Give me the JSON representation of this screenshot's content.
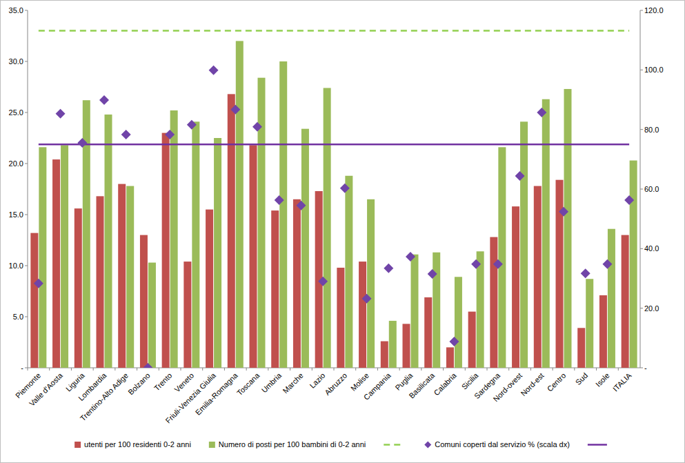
{
  "chart_data": {
    "type": "bar",
    "legend": "bottom",
    "grid": false,
    "categories": [
      "Piemonte",
      "Valle d'Aosta",
      "Liguria",
      "Lombardia",
      "Trentino-Alto Adige",
      "Bolzano",
      "Trento",
      "Veneto",
      "Friuli-Venezia Giulia",
      "Emilia-Romagna",
      "Toscana",
      "Umbria",
      "Marche",
      "Lazio",
      "Abruzzo",
      "Molise",
      "Campania",
      "Puglia",
      "Basilicata",
      "Calabria",
      "Sicilia",
      "Sardegna",
      "Nord-ovest",
      "Nord-est",
      "Centro",
      "Sud",
      "Isole",
      "ITALIA"
    ],
    "ylim": [
      0,
      35
    ],
    "yticks": [
      {
        "value": 0,
        "label": "-"
      },
      {
        "value": 5,
        "label": "5.0"
      },
      {
        "value": 10,
        "label": "10.0"
      },
      {
        "value": 15,
        "label": "15.0"
      },
      {
        "value": 20,
        "label": "20.0"
      },
      {
        "value": 25,
        "label": "25.0"
      },
      {
        "value": 30,
        "label": "30.0"
      },
      {
        "value": 35,
        "label": "35.0"
      }
    ],
    "y2lim": [
      0,
      120
    ],
    "y2ticks": [
      {
        "value": 0,
        "label": "-"
      },
      {
        "value": 20,
        "label": "20.0"
      },
      {
        "value": 40,
        "label": "40.0"
      },
      {
        "value": 60,
        "label": "60.0"
      },
      {
        "value": 80,
        "label": "80.0"
      },
      {
        "value": 100,
        "label": "100.0"
      },
      {
        "value": 120,
        "label": "120.0"
      }
    ],
    "series": [
      {
        "name": "utenti per 100 residenti 0-2 anni",
        "type": "bar",
        "color": "#c0504d",
        "values": [
          13.2,
          20.4,
          15.6,
          16.8,
          18.0,
          13.0,
          23.0,
          10.4,
          15.5,
          26.8,
          21.8,
          15.4,
          16.5,
          17.3,
          9.8,
          10.4,
          2.6,
          4.3,
          6.9,
          2.0,
          5.5,
          12.8,
          15.8,
          17.8,
          18.4,
          3.9,
          7.1,
          13.0
        ]
      },
      {
        "name": "Numero di posti per 100 bambini di 0-2 anni",
        "type": "bar",
        "color": "#9bbb59",
        "values": [
          21.6,
          21.8,
          26.2,
          24.8,
          17.8,
          10.3,
          25.2,
          24.1,
          22.5,
          32.0,
          28.4,
          30.0,
          23.4,
          27.4,
          18.8,
          16.5,
          4.6,
          11.1,
          11.3,
          8.9,
          11.4,
          21.6,
          24.1,
          26.3,
          27.3,
          8.7,
          13.6,
          20.3
        ]
      },
      {
        "type": "line",
        "line_style": "dashed",
        "color": "#92d050",
        "values": [
          33,
          33,
          33,
          33,
          33,
          33,
          33,
          33,
          33,
          33,
          33,
          33,
          33,
          33,
          33,
          33,
          33,
          33,
          33,
          33,
          33,
          33,
          33,
          33,
          33,
          33,
          33,
          33
        ]
      },
      {
        "name": "Comuni coperti dal servizio % (scala dx)",
        "type": "scatter",
        "marker": "diamond",
        "color": "#7044a8",
        "axis": "y2",
        "values": [
          28.3,
          85.3,
          75.5,
          89.9,
          78.3,
          0,
          78.3,
          81.6,
          99.9,
          86.7,
          80.9,
          56.3,
          54.5,
          29.0,
          60.3,
          23.2,
          33.4,
          37.3,
          31.5,
          8.8,
          34.8,
          34.8,
          64.4,
          85.7,
          52.4,
          31.7,
          34.8,
          56.3
        ]
      },
      {
        "type": "line",
        "line_style": "solid",
        "color": "#7030a0",
        "axis": "y2",
        "values": [
          75,
          75,
          75,
          75,
          75,
          75,
          75,
          75,
          75,
          75,
          75,
          75,
          75,
          75,
          75,
          75,
          75,
          75,
          75,
          75,
          75,
          75,
          75,
          75,
          75,
          75,
          75,
          75
        ]
      }
    ]
  }
}
